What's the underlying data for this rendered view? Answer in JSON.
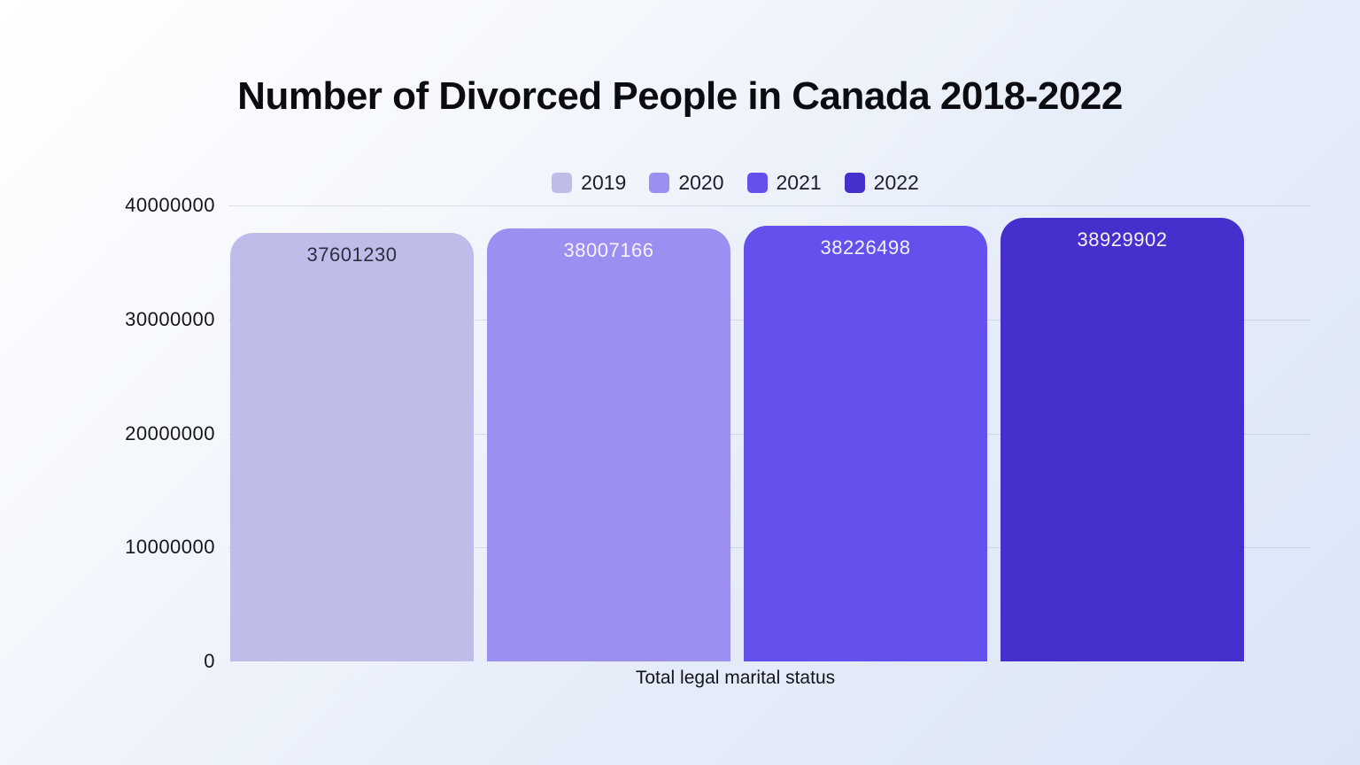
{
  "page": {
    "background_gradient": [
      "#ffffff",
      "#dbe5f8"
    ]
  },
  "chart_data": {
    "type": "bar",
    "title": "Number of Divorced People in Canada 2018-2022",
    "xlabel": "Total legal marital status",
    "ylabel": "",
    "categories": [
      "Total legal marital status"
    ],
    "ylim": [
      0,
      40000000
    ],
    "yticks": [
      0,
      10000000,
      20000000,
      30000000,
      40000000
    ],
    "ytick_labels": [
      "0",
      "10000000",
      "20000000",
      "30000000",
      "40000000"
    ],
    "grid": true,
    "legend_position": "top-center",
    "series": [
      {
        "name": "2019",
        "value": 37601230,
        "value_label": "37601230",
        "color": "#bfbcea",
        "value_label_color": "#2e2e3e"
      },
      {
        "name": "2020",
        "value": 38007166,
        "value_label": "38007166",
        "color": "#9c8ff2",
        "value_label_color": "#f4f2fd"
      },
      {
        "name": "2021",
        "value": 38226498,
        "value_label": "38226498",
        "color": "#6450ec",
        "value_label_color": "#f4f2fd"
      },
      {
        "name": "2022",
        "value": 38929902,
        "value_label": "38929902",
        "color": "#4630cd",
        "value_label_color": "#f4f2fd"
      }
    ]
  },
  "colors": {
    "grid_line": "rgba(125,135,165,0.22)",
    "axis_text": "#15151e",
    "title_text": "#0b0b12",
    "legend_text": "#1d1d2b"
  }
}
